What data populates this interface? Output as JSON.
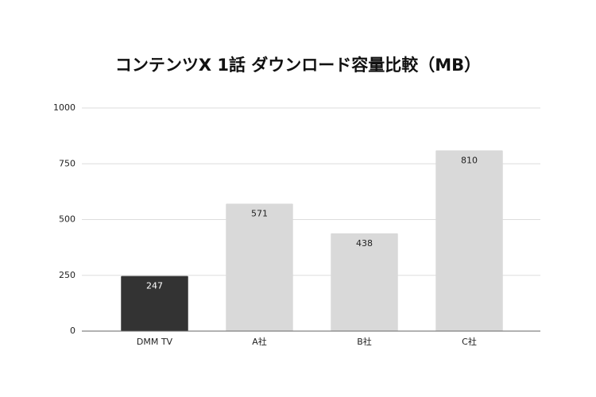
{
  "chart_data": {
    "type": "bar",
    "title": "コンテンツX 1話 ダウンロード容量比較（MB）",
    "categories": [
      "DMM TV",
      "A社",
      "B社",
      "C社"
    ],
    "values": [
      247,
      571,
      438,
      810
    ],
    "colors": [
      "#333333",
      "#d9d9d9",
      "#d9d9d9",
      "#d9d9d9"
    ],
    "ylim": [
      0,
      1000
    ],
    "yticks": [
      0,
      250,
      500,
      750,
      1000
    ],
    "grid": true,
    "data_labels": true
  }
}
